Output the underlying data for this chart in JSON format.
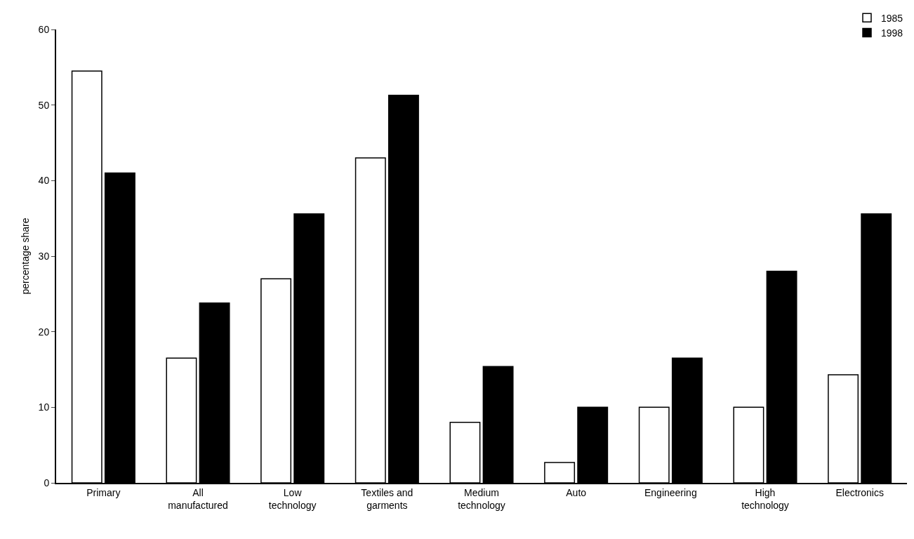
{
  "chart_data": {
    "type": "bar",
    "ylabel": "percentage share",
    "categories": [
      "Primary",
      "All manufactured",
      "Low technology",
      "Textiles and garments",
      "Medium technology",
      "Auto",
      "Engineering",
      "High technology",
      "Electronics"
    ],
    "series": [
      {
        "name": "1985",
        "color": "#ffffff",
        "values": [
          54.5,
          16.5,
          27,
          43,
          8,
          2.7,
          10,
          10,
          14.3
        ]
      },
      {
        "name": "1998",
        "color": "#000000",
        "values": [
          41,
          23.8,
          35.6,
          51.3,
          15.4,
          10,
          16.5,
          28,
          35.6
        ]
      }
    ],
    "ylim": [
      0,
      60
    ],
    "yticks": [
      0,
      10,
      20,
      30,
      40,
      50,
      60
    ],
    "grid": false,
    "legend": "top right"
  }
}
